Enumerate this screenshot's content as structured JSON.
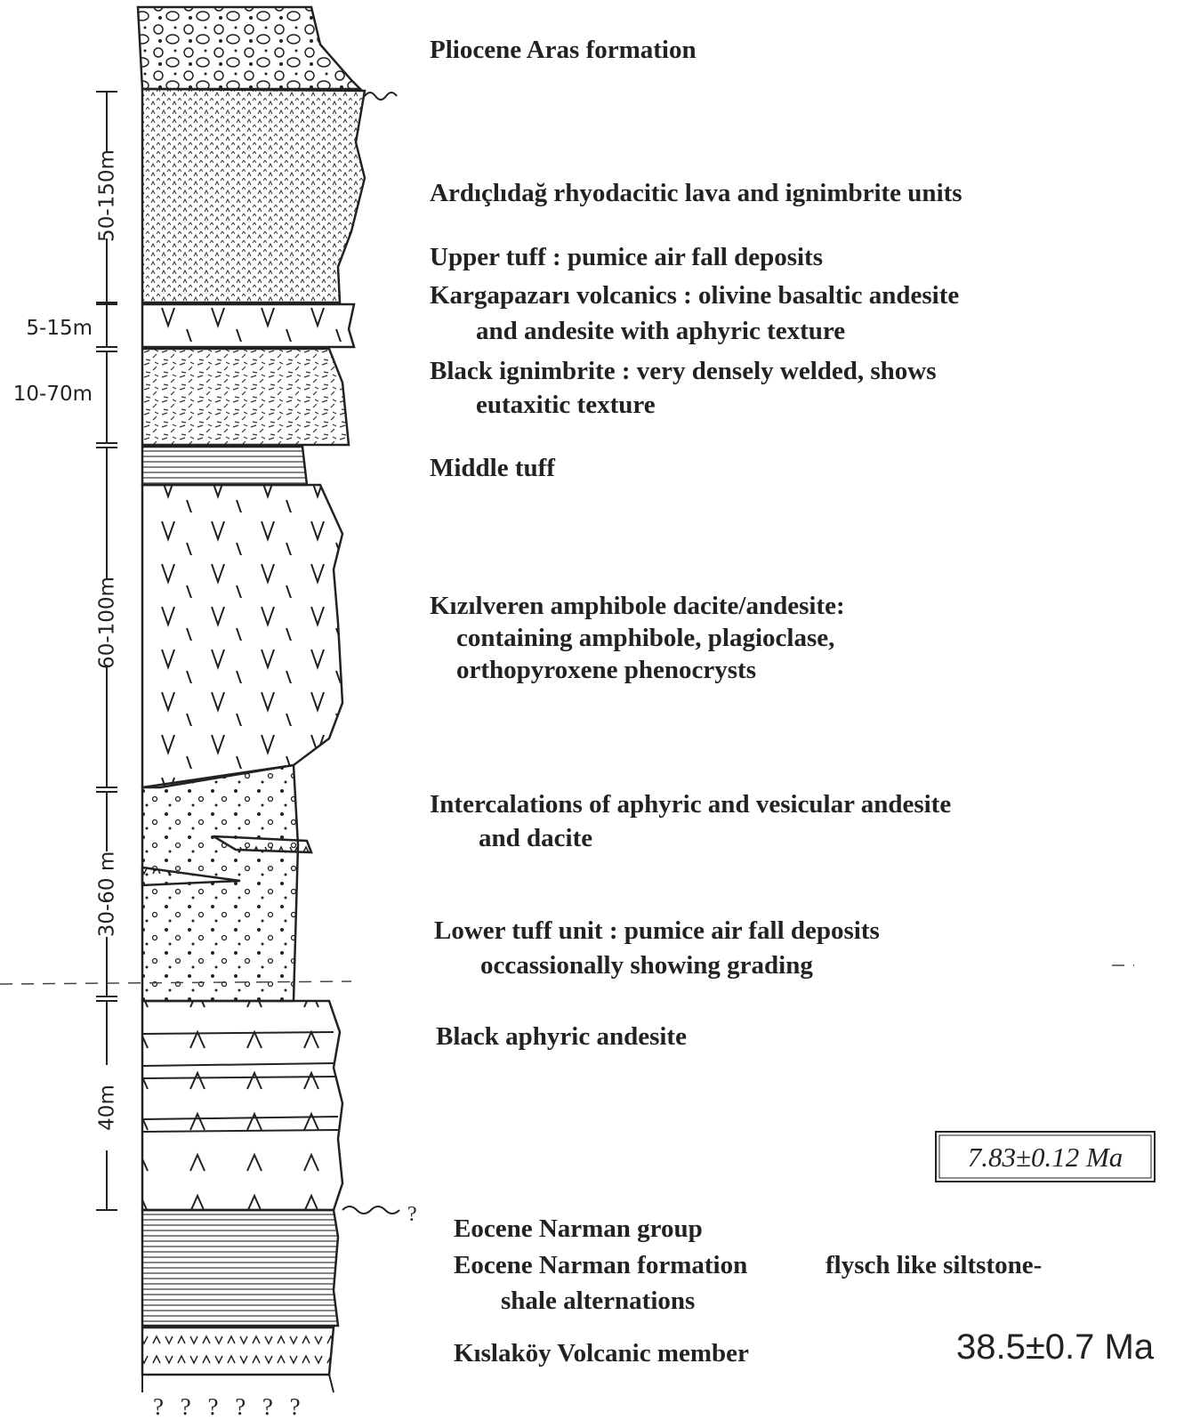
{
  "thickness_labels": [
    "50-150m",
    "5-15m",
    "10-70m",
    "60-100m",
    "30-60 m",
    "40m"
  ],
  "units": [
    [
      "Pliocene Aras formation"
    ],
    [
      "Ardıçlıdağ rhyodacitic lava and ignimbrite units"
    ],
    [
      "Upper tuff :  pumice air fall deposits"
    ],
    [
      "Kargapazarı volcanics :  olivine basaltic andesite",
      "and andesite with aphyric texture"
    ],
    [
      "Black ignimbrite :  very densely welded, shows",
      "eutaxitic texture"
    ],
    [
      "Middle tuff"
    ],
    [
      "Kızılveren amphibole dacite/andesite:",
      "containing amphibole, plagioclase,",
      "orthopyroxene phenocrysts"
    ],
    [
      "Intercalations of aphyric and vesicular andesite",
      "and dacite"
    ],
    [
      "Lower tuff   unit :  pumice air fall deposits",
      "occassionally showing grading"
    ],
    [
      "Black aphyric andesite"
    ],
    [
      "Eocene Narman group"
    ],
    [
      "Eocene Narman formation",
      "flysch like siltstone-",
      "shale alternations"
    ],
    [
      "Kıslaköy Volcanic member"
    ]
  ],
  "ages": [
    "7.83±0.12 Ma",
    "38.5±0.7 Ma"
  ],
  "unconformity_query": "?",
  "base_query": "? ? ? ? ? ?"
}
